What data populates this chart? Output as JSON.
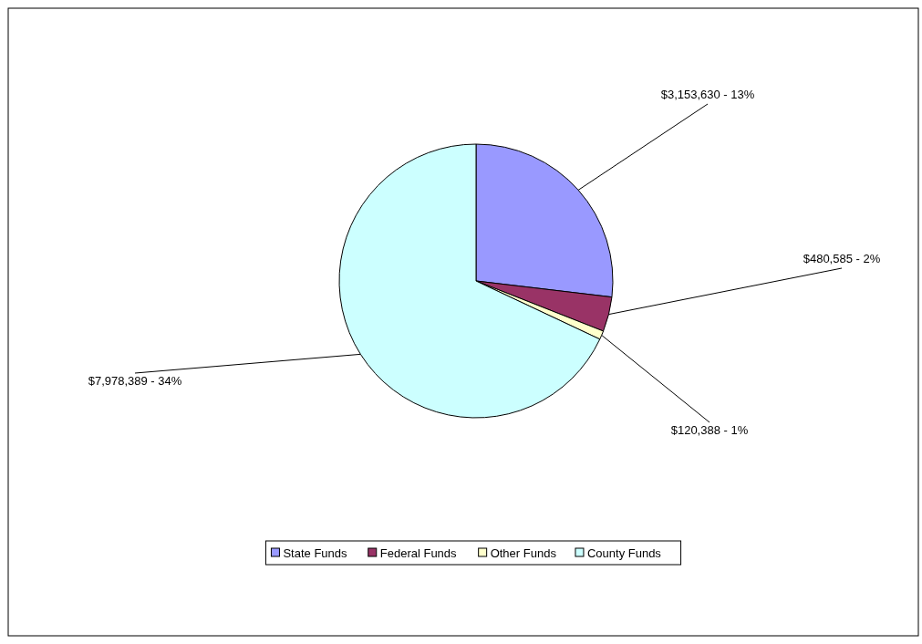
{
  "chart_data": {
    "type": "pie",
    "categories": [
      "State Funds",
      "Federal Funds",
      "Other Funds",
      "County Funds"
    ],
    "values": [
      3153630,
      480585,
      120388,
      7978389
    ],
    "colors": [
      "#9999ff",
      "#993366",
      "#ffffcc",
      "#ccffff"
    ],
    "value_labels": [
      "$3,153,630 - 13%",
      "$480,585 - 2%",
      "$120,388 - 1%",
      "$7,978,389 - 34%"
    ],
    "legend": "bottom"
  }
}
